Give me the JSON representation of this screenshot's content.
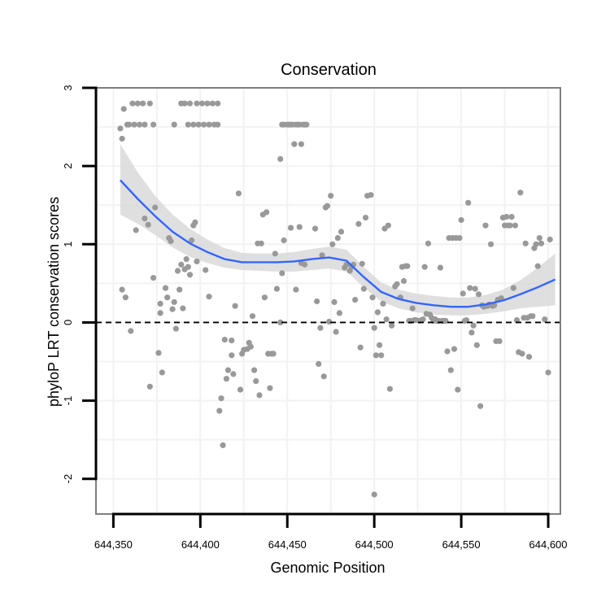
{
  "chart_data": {
    "type": "scatter",
    "title": "Conservation",
    "xlabel": "Genomic Position",
    "ylabel": "phyloP LRT conservation scores",
    "xlim": [
      644340,
      644607
    ],
    "ylim": [
      -2.45,
      3.0
    ],
    "x_ticks": [
      644350,
      644400,
      644450,
      644500,
      644550,
      644600
    ],
    "x_tick_labels": [
      "644,350",
      "644,400",
      "644,450",
      "644,500",
      "644,550",
      "644,600"
    ],
    "y_ticks": [
      -2,
      -1,
      0,
      1,
      2,
      3
    ],
    "y_tick_labels": [
      "-2",
      "-1",
      "0",
      "1",
      "2",
      "3"
    ],
    "reference_line": {
      "y": 0,
      "style": "dashed"
    },
    "colors": {
      "points": "#999999",
      "smooth": "#3366ff",
      "ribbon": "#d9d9d9",
      "border": "#7f7f7f",
      "grid": "#f2f2f2"
    },
    "points": [
      [
        644354,
        2.48
      ],
      [
        644355,
        2.35
      ],
      [
        644356,
        2.73
      ],
      [
        644358,
        2.53
      ],
      [
        644359,
        2.53
      ],
      [
        644361,
        2.8
      ],
      [
        644362,
        2.53
      ],
      [
        644364,
        2.8
      ],
      [
        644365,
        2.53
      ],
      [
        644367,
        2.8
      ],
      [
        644368,
        2.53
      ],
      [
        644371,
        2.8
      ],
      [
        644373,
        2.53
      ],
      [
        644355,
        0.42
      ],
      [
        644357,
        0.32
      ],
      [
        644360,
        -0.11
      ],
      [
        644363,
        1.18
      ],
      [
        644368,
        1.33
      ],
      [
        644370,
        1.25
      ],
      [
        644371,
        -0.82
      ],
      [
        644373,
        0.57
      ],
      [
        644374,
        1.47
      ],
      [
        644376,
        -0.39
      ],
      [
        644377,
        0.12
      ],
      [
        644377,
        0.24
      ],
      [
        644378,
        -0.64
      ],
      [
        644380,
        0.44
      ],
      [
        644381,
        0.32
      ],
      [
        644382,
        1.08
      ],
      [
        644383,
        1.04
      ],
      [
        644384,
        0.17
      ],
      [
        644385,
        0.26
      ],
      [
        644386,
        -0.08
      ],
      [
        644387,
        0.66
      ],
      [
        644388,
        0.42
      ],
      [
        644389,
        0.74
      ],
      [
        644390,
        0.18
      ],
      [
        644391,
        0.68
      ],
      [
        644392,
        0.81
      ],
      [
        644393,
        0.71
      ],
      [
        644394,
        0.61
      ],
      [
        644395,
        1.05
      ],
      [
        644396,
        1.24
      ],
      [
        644397,
        1.28
      ],
      [
        644398,
        0.78
      ],
      [
        644403,
        0.67
      ],
      [
        644405,
        0.33
      ],
      [
        644385,
        2.53
      ],
      [
        644389,
        2.8
      ],
      [
        644391,
        2.8
      ],
      [
        644393,
        2.53
      ],
      [
        644394,
        2.8
      ],
      [
        644396,
        2.53
      ],
      [
        644398,
        2.8
      ],
      [
        644399,
        2.53
      ],
      [
        644401,
        2.8
      ],
      [
        644402,
        2.53
      ],
      [
        644404,
        2.8
      ],
      [
        644405,
        2.53
      ],
      [
        644407,
        2.8
      ],
      [
        644408,
        2.53
      ],
      [
        644410,
        2.8
      ],
      [
        644410,
        2.53
      ],
      [
        644411,
        -1.13
      ],
      [
        644412,
        -0.97
      ],
      [
        644413,
        -1.57
      ],
      [
        644414,
        -0.22
      ],
      [
        644415,
        -0.72
      ],
      [
        644416,
        -0.61
      ],
      [
        644418,
        -0.42
      ],
      [
        644418,
        -0.23
      ],
      [
        644419,
        -0.66
      ],
      [
        644420,
        0.21
      ],
      [
        644422,
        1.65
      ],
      [
        644423,
        -0.86
      ],
      [
        644424,
        -0.4
      ],
      [
        644425,
        -0.35
      ],
      [
        644427,
        -0.34
      ],
      [
        644428,
        -0.26
      ],
      [
        644429,
        -0.31
      ],
      [
        644430,
        0.08
      ],
      [
        644431,
        -0.61
      ],
      [
        644432,
        -0.75
      ],
      [
        644433,
        1.01
      ],
      [
        644434,
        -0.93
      ],
      [
        644435,
        1.01
      ],
      [
        644436,
        1.38
      ],
      [
        644437,
        0.32
      ],
      [
        644438,
        1.41
      ],
      [
        644439,
        -0.4
      ],
      [
        644440,
        -0.84
      ],
      [
        644441,
        -0.4
      ],
      [
        644442,
        -0.4
      ],
      [
        644443,
        0.88
      ],
      [
        644444,
        0.43
      ],
      [
        644446,
        0.0
      ],
      [
        644447,
        0.63
      ],
      [
        644448,
        1.05
      ],
      [
        644452,
        1.21
      ],
      [
        644455,
        0.42
      ],
      [
        644457,
        1.22
      ],
      [
        644458,
        0.76
      ],
      [
        644460,
        0.74
      ],
      [
        644466,
        1.2
      ],
      [
        644467,
        0.27
      ],
      [
        644468,
        -0.53
      ],
      [
        644469,
        -0.07
      ],
      [
        644470,
        0.86
      ],
      [
        644471,
        -0.69
      ],
      [
        644472,
        1.47
      ],
      [
        644473,
        1.49
      ],
      [
        644474,
        0.01
      ],
      [
        644475,
        1.62
      ],
      [
        644476,
        1.0
      ],
      [
        644477,
        0.26
      ],
      [
        644478,
        -0.12
      ],
      [
        644479,
        1.08
      ],
      [
        644480,
        0.12
      ],
      [
        644481,
        1.16
      ],
      [
        644483,
        0.7
      ],
      [
        644484,
        0.74
      ],
      [
        644486,
        0.66
      ],
      [
        644487,
        0.71
      ],
      [
        644488,
        0.74
      ],
      [
        644489,
        0.29
      ],
      [
        644491,
        1.26
      ],
      [
        644492,
        -0.32
      ],
      [
        644493,
        0.75
      ],
      [
        644494,
        0.43
      ],
      [
        644495,
        1.34
      ],
      [
        644496,
        1.62
      ],
      [
        644498,
        1.63
      ],
      [
        644499,
        0.32
      ],
      [
        644500,
        -0.07
      ],
      [
        644501,
        -0.42
      ],
      [
        644502,
        0.13
      ],
      [
        644503,
        -0.29
      ],
      [
        644504,
        -0.42
      ],
      [
        644505,
        0.24
      ],
      [
        644506,
        1.2
      ],
      [
        644507,
        0.04
      ],
      [
        644508,
        1.24
      ],
      [
        644509,
        -0.85
      ],
      [
        644510,
        -0.04
      ],
      [
        644512,
        0.46
      ],
      [
        644513,
        0.49
      ],
      [
        644515,
        0.32
      ],
      [
        644516,
        0.71
      ],
      [
        644517,
        0.53
      ],
      [
        644518,
        0.72
      ],
      [
        644519,
        0.72
      ],
      [
        644520,
        0.02
      ],
      [
        644521,
        0.02
      ],
      [
        644522,
        0.18
      ],
      [
        644523,
        0.03
      ],
      [
        644524,
        0.03
      ],
      [
        644526,
        0.02
      ],
      [
        644527,
        0.03
      ],
      [
        644528,
        0.04
      ],
      [
        644529,
        0.71
      ],
      [
        644530,
        0.11
      ],
      [
        644531,
        1.01
      ],
      [
        644532,
        0.1
      ],
      [
        644533,
        0.06
      ],
      [
        644534,
        0.02
      ],
      [
        644535,
        0.04
      ],
      [
        644536,
        0.02
      ],
      [
        644537,
        0.02
      ],
      [
        644538,
        0.7
      ],
      [
        644539,
        0.02
      ],
      [
        644540,
        0.02
      ],
      [
        644541,
        0.02
      ],
      [
        644542,
        -0.37
      ],
      [
        644543,
        1.08
      ],
      [
        644544,
        -0.61
      ],
      [
        644545,
        1.08
      ],
      [
        644546,
        -0.34
      ],
      [
        644547,
        1.08
      ],
      [
        644548,
        -0.86
      ],
      [
        644549,
        1.08
      ],
      [
        644550,
        1.31
      ],
      [
        644551,
        0.37
      ],
      [
        644552,
        0.02
      ],
      [
        644553,
        0.03
      ],
      [
        644554,
        1.53
      ],
      [
        644555,
        0.44
      ],
      [
        644556,
        -0.13
      ],
      [
        644557,
        -0.04
      ],
      [
        644558,
        0.43
      ],
      [
        644559,
        -0.29
      ],
      [
        644560,
        0.36
      ],
      [
        644561,
        -1.07
      ],
      [
        644562,
        0.22
      ],
      [
        644563,
        0.2
      ],
      [
        644564,
        1.24
      ],
      [
        644565,
        0.21
      ],
      [
        644566,
        0.23
      ],
      [
        644567,
        1.0
      ],
      [
        644568,
        0.21
      ],
      [
        644569,
        0.22
      ],
      [
        644570,
        -0.24
      ],
      [
        644571,
        0.29
      ],
      [
        644572,
        -0.24
      ],
      [
        644573,
        0.31
      ],
      [
        644574,
        1.34
      ],
      [
        644575,
        1.24
      ],
      [
        644576,
        1.35
      ],
      [
        644577,
        1.24
      ],
      [
        644578,
        1.24
      ],
      [
        644579,
        1.35
      ],
      [
        644580,
        0.44
      ],
      [
        644581,
        1.24
      ],
      [
        644582,
        0.03
      ],
      [
        644583,
        -0.38
      ],
      [
        644584,
        1.66
      ],
      [
        644585,
        -0.4
      ],
      [
        644586,
        0.06
      ],
      [
        644587,
        1.01
      ],
      [
        644588,
        0.06
      ],
      [
        644589,
        -0.44
      ],
      [
        644590,
        0.08
      ],
      [
        644591,
        0.08
      ],
      [
        644592,
        0.95
      ],
      [
        644593,
        1.0
      ],
      [
        644594,
        0.72
      ],
      [
        644595,
        1.08
      ],
      [
        644596,
        1.01
      ],
      [
        644598,
        0.04
      ],
      [
        644600,
        -0.64
      ],
      [
        644601,
        1.06
      ],
      [
        644446,
        2.09
      ],
      [
        644447,
        2.53
      ],
      [
        644448,
        2.53
      ],
      [
        644450,
        2.53
      ],
      [
        644451,
        2.53
      ],
      [
        644452,
        2.53
      ],
      [
        644453,
        2.53
      ],
      [
        644454,
        2.28
      ],
      [
        644455,
        2.53
      ],
      [
        644456,
        2.53
      ],
      [
        644457,
        2.53
      ],
      [
        644458,
        2.28
      ],
      [
        644459,
        2.53
      ],
      [
        644460,
        2.53
      ],
      [
        644461,
        2.53
      ],
      [
        644500,
        -2.2
      ]
    ],
    "smooth": {
      "x": [
        644354,
        644364,
        644374,
        644384,
        644394,
        644404,
        644414,
        644424,
        644434,
        644444,
        644454,
        644464,
        644474,
        644484,
        644494,
        644504,
        644514,
        644524,
        644534,
        644544,
        644554,
        644564,
        644574,
        644584,
        644594,
        644604
      ],
      "y": [
        1.82,
        1.58,
        1.36,
        1.16,
        1.01,
        0.9,
        0.81,
        0.77,
        0.77,
        0.77,
        0.78,
        0.81,
        0.83,
        0.79,
        0.58,
        0.39,
        0.3,
        0.25,
        0.22,
        0.2,
        0.2,
        0.23,
        0.28,
        0.36,
        0.45,
        0.55
      ],
      "lower": [
        1.38,
        1.26,
        1.12,
        0.96,
        0.84,
        0.76,
        0.7,
        0.67,
        0.66,
        0.65,
        0.65,
        0.67,
        0.69,
        0.65,
        0.45,
        0.27,
        0.18,
        0.13,
        0.1,
        0.09,
        0.09,
        0.11,
        0.14,
        0.18,
        0.2,
        0.22
      ],
      "upper": [
        2.28,
        1.92,
        1.62,
        1.38,
        1.2,
        1.06,
        0.95,
        0.89,
        0.88,
        0.88,
        0.9,
        0.94,
        0.97,
        0.93,
        0.71,
        0.51,
        0.42,
        0.37,
        0.34,
        0.32,
        0.32,
        0.35,
        0.42,
        0.54,
        0.7,
        0.88
      ]
    }
  }
}
